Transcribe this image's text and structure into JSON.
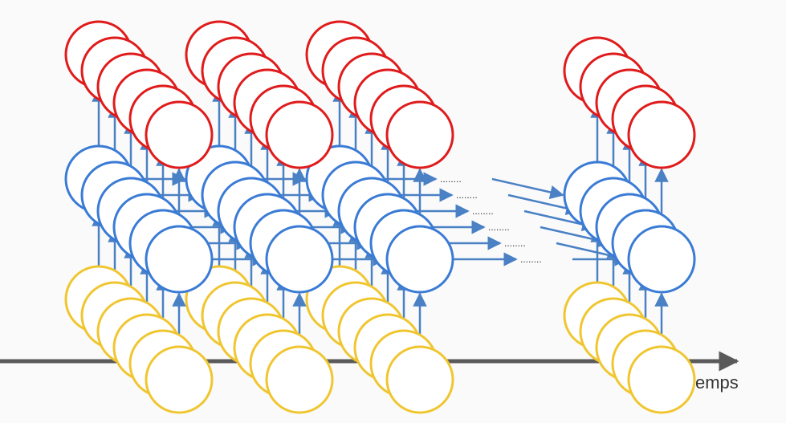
{
  "axis": {
    "label": "emps",
    "color": "#5a5a5a"
  },
  "ellipsis": "........",
  "colors": {
    "output_layer": "#e01b1b",
    "hidden_layer": "#3a7bd5",
    "input_layer": "#f0c630",
    "connection": "#4a80c4",
    "node_fill": "#ffffff"
  },
  "network": {
    "time_steps": 4,
    "layers": [
      "output",
      "hidden",
      "input"
    ],
    "nodes_per_layer": 6,
    "final_step_nodes_per_layer": 5,
    "has_gap_between_steps": [
      false,
      false,
      true
    ]
  }
}
